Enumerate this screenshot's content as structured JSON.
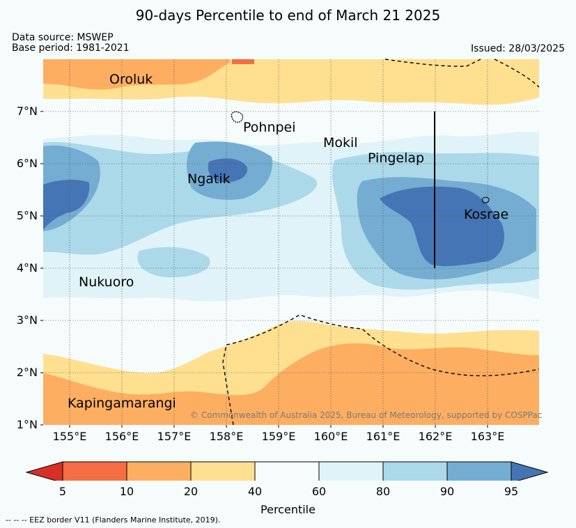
{
  "title": "90-days Percentile to end of March 21 2025",
  "data_source": "Data source: MSWEP",
  "base_period": "Base period: 1981-2021",
  "issued": "Issued: 28/03/2025",
  "lat_labels": [
    "7°N",
    "6°N",
    "5°N",
    "4°N",
    "3°N",
    "2°N",
    "1°N"
  ],
  "lon_labels": [
    "155°E",
    "156°E",
    "157°E",
    "158°E",
    "159°E",
    "160°E",
    "161°E",
    "162°E",
    "163°E"
  ],
  "places": {
    "oroluk": "Oroluk",
    "pohnpei": "Pohnpei",
    "mokil": "Mokil",
    "pingelap": "Pingelap",
    "ngatik": "Ngatik",
    "kosrae": "Kosrae",
    "nukuoro": "Nukuoro",
    "kapingamarangi": "Kapingamarangi"
  },
  "copyright": "© Commonwealth of Australia 2025, Bureau of Meteorology, supported by COSPPac",
  "colorbar": {
    "ticks": [
      "5",
      "10",
      "20",
      "40",
      "60",
      "80",
      "90",
      "95"
    ],
    "label": "Percentile",
    "colors": [
      "#d73027",
      "#f46d43",
      "#fdae61",
      "#fee090",
      "#f6fcfc",
      "#e0f3f8",
      "#abd9e9",
      "#74add1",
      "#4575b4"
    ]
  },
  "footnote": "-- -- -- EEZ border V11 (Flanders Marine Institute, 2019)."
}
